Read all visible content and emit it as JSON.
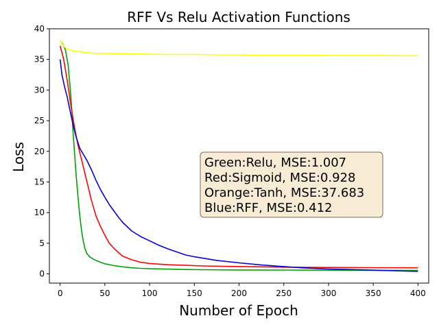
{
  "chart_data": {
    "type": "line",
    "title": "RFF Vs Relu Activation Functions",
    "xlabel": "Number of Epoch",
    "ylabel": "Loss",
    "xlim": [
      -12,
      412
    ],
    "ylim": [
      -1.5,
      40
    ],
    "xticks": [
      0,
      50,
      100,
      150,
      200,
      250,
      300,
      350,
      400
    ],
    "yticks": [
      0,
      5,
      10,
      15,
      20,
      25,
      30,
      35,
      40
    ],
    "legend_placement": "center-right",
    "annotation_lines": [
      "Green:Relu, MSE:1.007",
      "Red:Sigmoid, MSE:0.928",
      "Orange:Tanh, MSE:37.683",
      "Blue:RFF, MSE:0.412"
    ],
    "series": [
      {
        "color": "#00a000",
        "x": [
          0,
          3,
          6,
          9,
          12,
          15,
          18,
          20,
          22,
          24,
          26,
          28,
          30,
          33,
          36,
          40,
          45,
          50,
          60,
          70,
          80,
          90,
          100,
          120,
          140,
          160,
          200,
          250,
          300,
          350,
          400
        ],
        "y": [
          38.0,
          37.5,
          36.5,
          34.0,
          29.0,
          22.0,
          16.0,
          12.5,
          9.5,
          7.0,
          5.2,
          4.0,
          3.3,
          2.8,
          2.5,
          2.2,
          1.9,
          1.65,
          1.35,
          1.15,
          1.0,
          0.9,
          0.85,
          0.78,
          0.72,
          0.68,
          0.64,
          0.62,
          0.6,
          0.58,
          0.56
        ]
      },
      {
        "color": "#ff0000",
        "x": [
          0,
          4,
          8,
          12,
          16,
          20,
          25,
          30,
          35,
          40,
          45,
          50,
          55,
          60,
          65,
          70,
          80,
          90,
          100,
          120,
          140,
          160,
          200,
          250,
          300,
          350,
          400
        ],
        "y": [
          37.2,
          35.0,
          31.5,
          27.5,
          24.0,
          21.0,
          18.0,
          15.0,
          12.0,
          9.5,
          7.8,
          6.3,
          5.0,
          4.2,
          3.5,
          2.9,
          2.3,
          1.9,
          1.7,
          1.5,
          1.4,
          1.3,
          1.2,
          1.1,
          1.05,
          1.02,
          1.0
        ]
      },
      {
        "color": "#ffff00",
        "x": [
          0,
          2,
          5,
          10,
          15,
          20,
          30,
          40,
          60,
          80,
          100,
          120,
          150,
          180,
          200,
          220,
          250,
          280,
          300,
          320,
          350,
          380,
          400
        ],
        "y": [
          38.0,
          37.6,
          37.0,
          36.6,
          36.4,
          36.3,
          36.1,
          36.0,
          35.95,
          35.9,
          35.85,
          35.8,
          35.8,
          35.75,
          35.75,
          35.7,
          35.7,
          35.7,
          35.65,
          35.65,
          35.65,
          35.6,
          35.6
        ]
      },
      {
        "color": "#0000dd",
        "x": [
          0,
          2,
          5,
          8,
          12,
          15,
          18,
          22,
          26,
          30,
          35,
          40,
          45,
          50,
          55,
          60,
          65,
          70,
          80,
          90,
          100,
          110,
          120,
          130,
          140,
          150,
          175,
          200,
          225,
          250,
          275,
          300,
          350,
          400
        ],
        "y": [
          35.0,
          32.5,
          30.5,
          28.8,
          26.0,
          24.0,
          22.3,
          20.5,
          19.5,
          18.5,
          17.0,
          15.3,
          13.8,
          12.5,
          11.3,
          10.3,
          9.3,
          8.4,
          7.0,
          6.1,
          5.4,
          4.7,
          4.1,
          3.6,
          3.1,
          2.8,
          2.2,
          1.8,
          1.45,
          1.2,
          0.95,
          0.8,
          0.6,
          0.4
        ]
      }
    ]
  }
}
